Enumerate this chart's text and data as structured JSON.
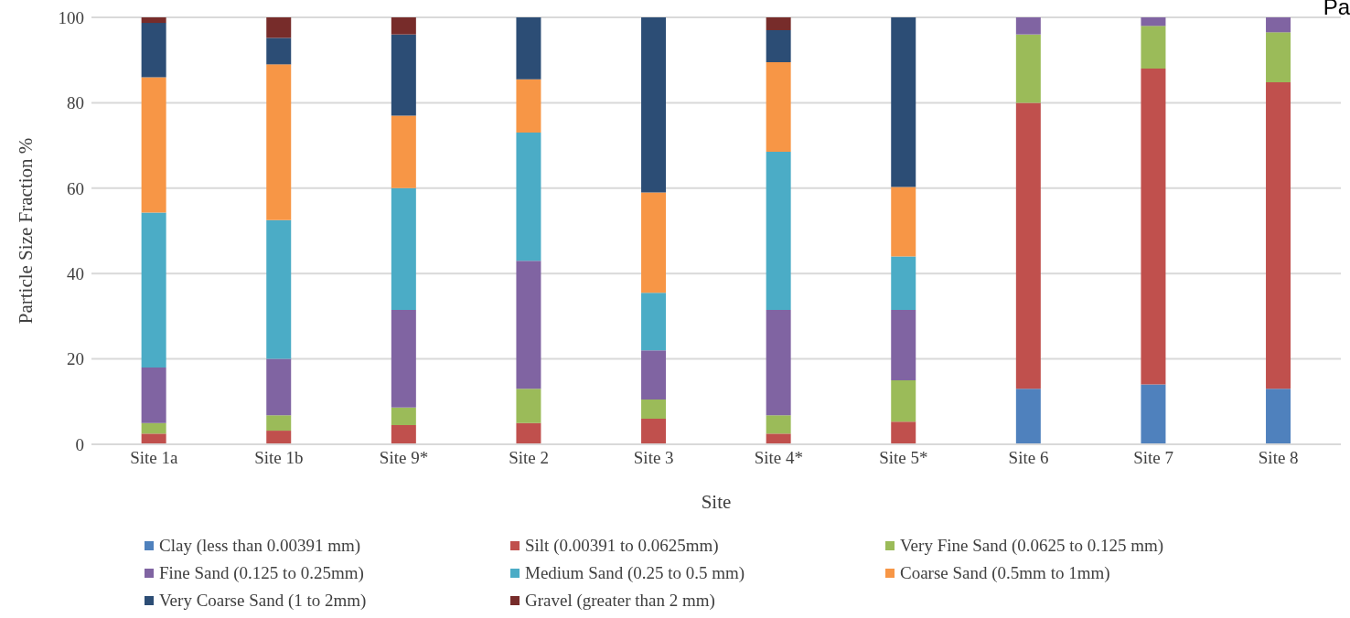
{
  "chart_data": {
    "type": "bar",
    "stacked": true,
    "xlabel": "Site",
    "ylabel": "Particle Size Fraction %",
    "categories": [
      "Site 1a",
      "Site 1b",
      "Site 9*",
      "Site 2",
      "Site 3",
      "Site 4*",
      "Site 5*",
      "Site 6",
      "Site 7",
      "Site 8"
    ],
    "series": [
      {
        "name": "Clay (less than 0.00391 mm)",
        "color": "#4f81bd",
        "values": [
          0,
          0,
          0,
          0,
          0,
          0,
          0,
          13,
          14,
          13
        ]
      },
      {
        "name": "Silt (0.00391 to 0.0625mm)",
        "color": "#c0504d",
        "values": [
          2.5,
          3.2,
          4.5,
          5,
          6,
          2.5,
          5.3,
          67,
          74,
          71.8
        ]
      },
      {
        "name": "Very Fine Sand (0.0625 to 0.125 mm)",
        "color": "#9bbb59",
        "values": [
          2.5,
          3.6,
          4.1,
          8,
          4.5,
          4.3,
          9.7,
          16,
          10,
          11.7
        ]
      },
      {
        "name": "Fine Sand (0.125 to 0.25mm)",
        "color": "#8064a2",
        "values": [
          13,
          13.2,
          22.9,
          30,
          11.5,
          24.7,
          16.5,
          4,
          2,
          3.5
        ]
      },
      {
        "name": "Medium Sand (0.25 to 0.5 mm)",
        "color": "#4bacc6",
        "values": [
          36.3,
          32.5,
          28.5,
          30,
          13.5,
          37,
          12.5,
          0,
          0,
          0
        ]
      },
      {
        "name": "Coarse Sand (0.5mm to 1mm)",
        "color": "#f79646",
        "values": [
          31.7,
          36.5,
          17,
          12.5,
          23.5,
          21,
          16.3,
          0,
          0,
          0
        ]
      },
      {
        "name": "Very Coarse Sand (1 to 2mm)",
        "color": "#2c4d75",
        "values": [
          12.7,
          6.2,
          19,
          14.5,
          41,
          7.5,
          39.7,
          0,
          0,
          0
        ]
      },
      {
        "name": "Gravel (greater than 2 mm)",
        "color": "#772c2a",
        "values": [
          1.3,
          4.8,
          4,
          0,
          0,
          3,
          0,
          0,
          0,
          0
        ]
      }
    ],
    "ylim": [
      0,
      100
    ],
    "yticks": [
      0,
      20,
      40,
      60,
      80,
      100
    ],
    "grid": "y",
    "legend": "bottom",
    "annotations": [
      "Pa"
    ]
  }
}
